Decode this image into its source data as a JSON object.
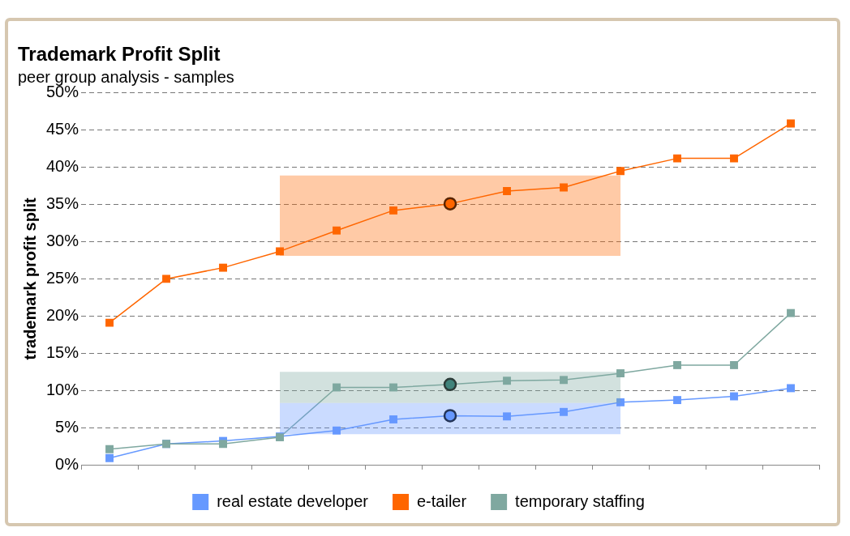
{
  "chart_data": {
    "type": "line",
    "title": "Trademark Profit Split",
    "subtitle": "peer group analysis - samples",
    "ylabel": "trademark profit split",
    "categories": [
      null,
      null,
      null,
      null,
      null,
      null,
      null,
      null,
      null,
      null,
      null,
      null,
      null
    ],
    "ylim": [
      0,
      50
    ],
    "yticks": [
      {
        "value": 0,
        "label": "0%"
      },
      {
        "value": 5,
        "label": "5%"
      },
      {
        "value": 10,
        "label": "10%"
      },
      {
        "value": 15,
        "label": "15%"
      },
      {
        "value": 20,
        "label": "20%"
      },
      {
        "value": 25,
        "label": "25%"
      },
      {
        "value": 30,
        "label": "30%"
      },
      {
        "value": 35,
        "label": "35%"
      },
      {
        "value": 40,
        "label": "40%"
      },
      {
        "value": 45,
        "label": "45%"
      },
      {
        "value": 50,
        "label": "50%"
      }
    ],
    "grid": "y",
    "legend": "bottom",
    "tick_labels": "y",
    "marker": "square",
    "line_style": "solid",
    "series": [
      {
        "name": "real estate developer",
        "color": "#6699ff",
        "values": [
          0.9,
          2.8,
          3.2,
          3.8,
          4.6,
          6.1,
          6.6,
          6.5,
          7.1,
          8.4,
          8.7,
          9.2,
          10.3
        ],
        "lower": [
          null,
          null,
          null,
          4.1,
          4.1,
          4.1,
          4.1,
          4.1,
          4.1,
          4.1,
          null,
          null,
          null
        ],
        "upper": [
          null,
          null,
          null,
          8.3,
          8.3,
          8.3,
          8.3,
          8.3,
          8.3,
          8.3,
          null,
          null,
          null
        ]
      },
      {
        "name": "e-tailer",
        "color": "#ff6600",
        "values": [
          19.1,
          25.0,
          26.5,
          28.7,
          31.5,
          34.2,
          35.1,
          36.8,
          37.3,
          39.5,
          41.2,
          41.2,
          45.9
        ],
        "lower": [
          null,
          null,
          null,
          28.1,
          28.1,
          28.1,
          28.1,
          28.1,
          28.1,
          28.1,
          null,
          null,
          null
        ],
        "upper": [
          null,
          null,
          null,
          38.9,
          38.9,
          38.9,
          38.9,
          38.9,
          38.9,
          38.9,
          null,
          null,
          null
        ]
      },
      {
        "name": "temporary staffing",
        "color": "#7fa8a0",
        "values": [
          2.1,
          2.8,
          2.8,
          3.7,
          10.4,
          10.4,
          10.8,
          11.3,
          11.4,
          12.3,
          13.4,
          13.4,
          20.4
        ],
        "lower": [
          null,
          null,
          null,
          8.3,
          8.3,
          8.3,
          8.3,
          8.3,
          8.3,
          8.3,
          null,
          null,
          null
        ],
        "upper": [
          null,
          null,
          null,
          12.5,
          12.5,
          12.5,
          12.5,
          12.5,
          12.5,
          12.5,
          null,
          null,
          null
        ]
      },
      {
        "type": "scatter",
        "marker": "circle",
        "color": "#6699ff",
        "values": [
          null,
          null,
          null,
          null,
          null,
          null,
          6.6,
          null,
          null,
          null,
          null,
          null,
          null
        ]
      },
      {
        "type": "scatter",
        "marker": "circle",
        "color": "#ff6600",
        "values": [
          null,
          null,
          null,
          null,
          null,
          null,
          35.1,
          null,
          null,
          null,
          null,
          null,
          null
        ]
      },
      {
        "type": "scatter",
        "marker": "circle",
        "color": "#1f6f68",
        "values": [
          null,
          null,
          null,
          null,
          null,
          null,
          10.8,
          null,
          null,
          null,
          null,
          null,
          null
        ]
      }
    ]
  }
}
